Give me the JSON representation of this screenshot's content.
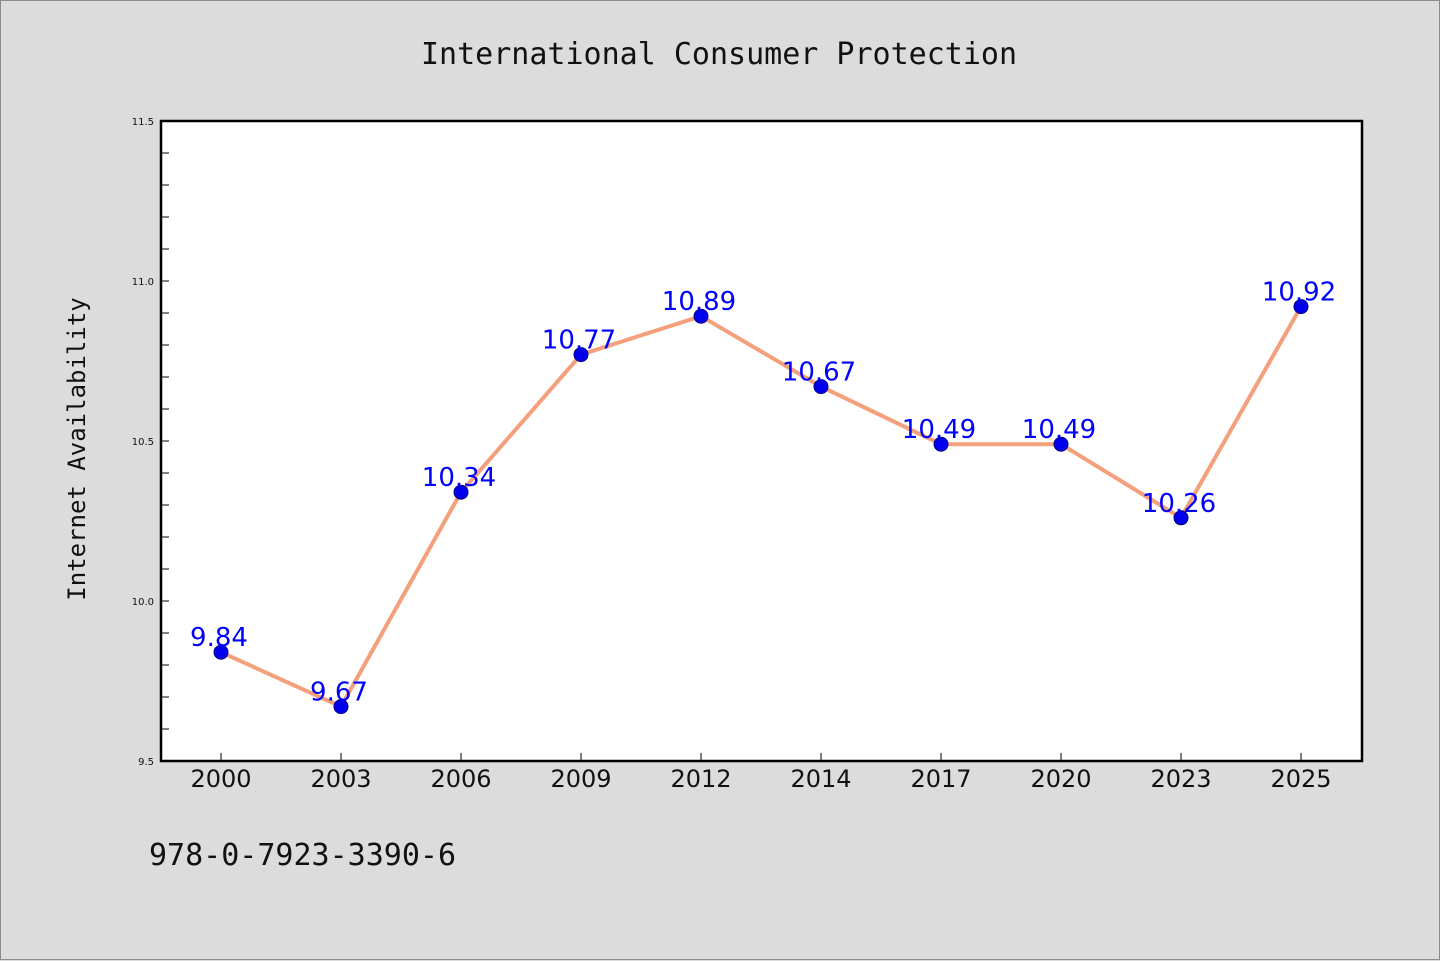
{
  "colors": {
    "background": "#dcdcdc",
    "plot_background": "#ffffff",
    "line": "#f4a07c",
    "marker": "#0000ee",
    "marker_edge": "#000080",
    "data_label": "#0000ff",
    "axis": "#000000"
  },
  "footer": {
    "isbn": "978-0-7923-3390-6"
  },
  "chart_data": {
    "type": "line",
    "title": "International Consumer Protection",
    "xlabel": "",
    "ylabel": "Internet Availability",
    "categories": [
      "2000",
      "2003",
      "2006",
      "2009",
      "2012",
      "2014",
      "2017",
      "2020",
      "2023",
      "2025"
    ],
    "series": [
      {
        "values": [
          9.84,
          9.67,
          10.34,
          10.77,
          10.89,
          10.67,
          10.49,
          10.49,
          10.26,
          10.92
        ],
        "labels": [
          "9.84",
          "9.67",
          "10.34",
          "10.77",
          "10.89",
          "10.67",
          "10.49",
          "10.49",
          "10.26",
          "10.92"
        ]
      }
    ],
    "ylim": [
      9.5,
      11.5
    ],
    "yticks": [
      "9.5",
      "10.0",
      "10.5",
      "11.0",
      "11.5"
    ],
    "ytick_values": [
      9.5,
      10.0,
      10.5,
      11.0,
      11.5
    ],
    "grid": false,
    "legend": "none"
  }
}
